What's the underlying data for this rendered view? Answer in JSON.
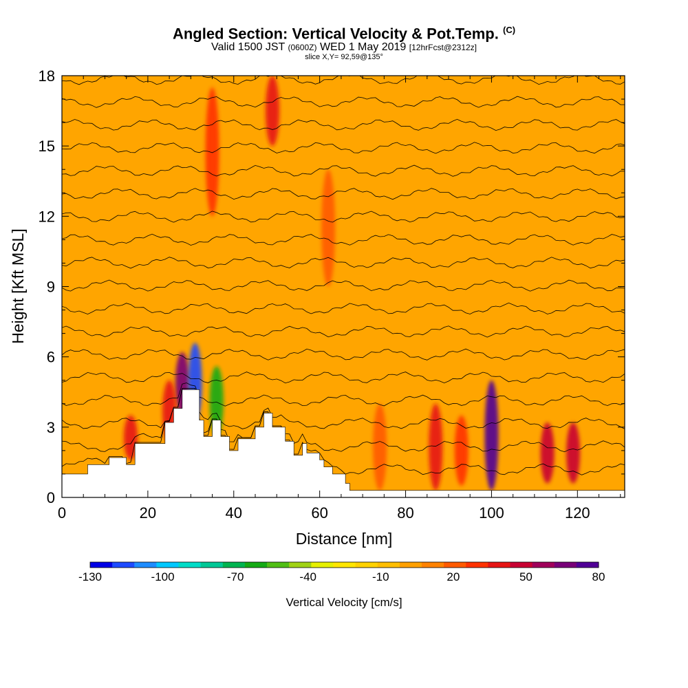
{
  "header": {
    "title_main": "Angled Section: Vertical Velocity & Pot.Temp.",
    "title_unit": "(C)",
    "valid_prefix": "Valid 1500 JST",
    "valid_utc": "(0600Z)",
    "valid_date": "WED 1 May 2019",
    "forecast": "[12hrFcst@2312z]",
    "slice": "slice X,Y= 92,59@135°"
  },
  "chart_data": {
    "type": "heatmap",
    "xlabel": "Distance [nm]",
    "ylabel": "Height [Kft MSL]",
    "xlim": [
      0,
      131
    ],
    "ylim": [
      0,
      18
    ],
    "x_ticks": [
      0,
      20,
      40,
      60,
      80,
      100,
      120
    ],
    "y_ticks": [
      0,
      3,
      6,
      9,
      12,
      15,
      18
    ],
    "terrain": {
      "x": [
        0,
        6,
        6,
        11,
        11,
        15,
        15,
        17,
        17,
        24,
        24,
        26,
        26,
        28,
        28,
        32,
        32,
        33,
        33,
        35,
        35,
        37,
        37,
        39,
        39,
        41,
        41,
        45,
        45,
        47,
        47,
        49,
        49,
        52,
        52,
        54,
        54,
        56,
        56,
        57,
        57,
        60,
        60,
        61,
        61,
        63,
        63,
        66,
        66,
        67,
        67,
        71,
        71,
        131
      ],
      "height_kft": [
        1.0,
        1.0,
        1.4,
        1.4,
        1.7,
        1.7,
        1.4,
        1.4,
        2.3,
        2.3,
        3.2,
        3.2,
        3.8,
        3.8,
        4.6,
        4.6,
        3.3,
        3.3,
        2.6,
        2.6,
        3.3,
        3.3,
        2.6,
        2.6,
        2.0,
        2.0,
        2.5,
        2.5,
        3.0,
        3.0,
        3.6,
        3.6,
        3.0,
        3.0,
        2.4,
        2.4,
        1.8,
        1.8,
        2.3,
        2.3,
        1.9,
        1.9,
        1.6,
        1.6,
        1.3,
        1.3,
        1.0,
        1.0,
        0.6,
        0.6,
        0.3,
        0.3,
        0.3,
        0.3
      ]
    },
    "velocity_features": [
      {
        "x": 100,
        "y_range": [
          0.3,
          5.0
        ],
        "w_cm_s": 75
      },
      {
        "x": 87,
        "y_range": [
          0.3,
          4.0
        ],
        "w_cm_s": 40
      },
      {
        "x": 113,
        "y_range": [
          0.6,
          3.2
        ],
        "w_cm_s": 45
      },
      {
        "x": 119,
        "y_range": [
          0.6,
          3.2
        ],
        "w_cm_s": 50
      },
      {
        "x": 93,
        "y_range": [
          0.5,
          3.5
        ],
        "w_cm_s": 30
      },
      {
        "x": 74,
        "y_range": [
          0.3,
          4.0
        ],
        "w_cm_s": 25
      },
      {
        "x": 28,
        "y_range": [
          3.5,
          6.2
        ],
        "w_cm_s": 70
      },
      {
        "x": 25,
        "y_range": [
          2.3,
          5.0
        ],
        "w_cm_s": 35
      },
      {
        "x": 16,
        "y_range": [
          1.6,
          3.5
        ],
        "w_cm_s": 35
      },
      {
        "x": 31,
        "y_range": [
          3.2,
          6.6
        ],
        "w_cm_s": -120
      },
      {
        "x": 36,
        "y_range": [
          2.6,
          5.6
        ],
        "w_cm_s": -60
      },
      {
        "x": 62,
        "y_range": [
          9.0,
          14.0
        ],
        "w_cm_s": 25
      },
      {
        "x": 49,
        "y_range": [
          15.0,
          18.0
        ],
        "w_cm_s": 35
      },
      {
        "x": 35,
        "y_range": [
          12.0,
          17.5
        ],
        "w_cm_s": 30
      }
    ],
    "pot_temp_contours_C": [
      18,
      20,
      22,
      24,
      26,
      28,
      30,
      32,
      34,
      36,
      38,
      40,
      42,
      44,
      46,
      48,
      50,
      52
    ],
    "colorbar": {
      "label": "Vertical Velocity [cm/s]",
      "ticks": [
        -130,
        -100,
        -70,
        -40,
        -10,
        20,
        50,
        80
      ],
      "colors": [
        "#0000e6",
        "#1e4bff",
        "#1e8cff",
        "#00c8ff",
        "#00dcc8",
        "#00c896",
        "#00b450",
        "#14aa14",
        "#50be14",
        "#a0d214",
        "#e6f000",
        "#ffe600",
        "#ffd200",
        "#ffbe00",
        "#ffa000",
        "#ff8200",
        "#ff5a00",
        "#ff3200",
        "#e61414",
        "#c80032",
        "#a0005a",
        "#780078",
        "#500096"
      ]
    }
  }
}
